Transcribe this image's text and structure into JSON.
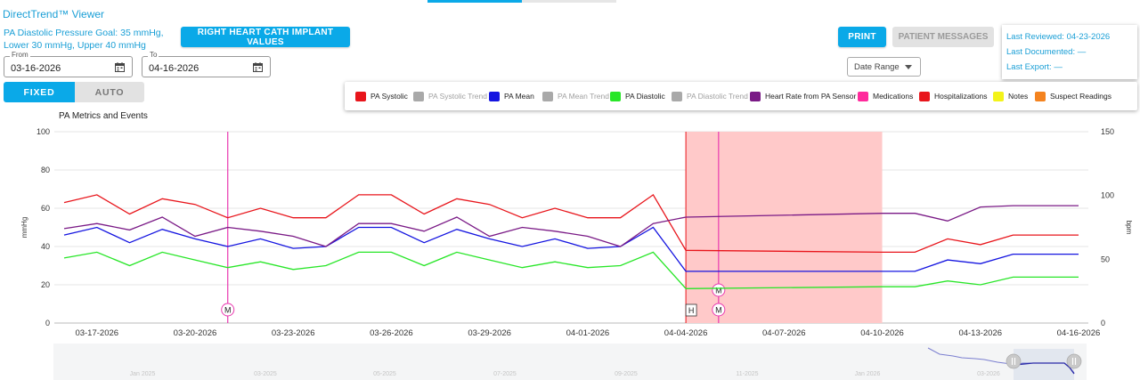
{
  "app": {
    "title": "DirectTrend™ Viewer"
  },
  "goal": {
    "line1": "PA Diastolic Pressure Goal: 35 mmHg,",
    "line2": "Lower 30 mmHg, Upper 40 mmHg"
  },
  "buttons": {
    "implant_values": "RIGHT HEART CATH IMPLANT VALUES",
    "print": "PRINT",
    "patient_messages": "PATIENT MESSAGES"
  },
  "from_field": {
    "label": "From",
    "value": "03-16-2026",
    "icon": "calendar-icon"
  },
  "to_field": {
    "label": "To",
    "value": "04-16-2026",
    "icon": "calendar-icon"
  },
  "scale_toggle": {
    "fixed": "FIXED",
    "auto": "AUTO",
    "selected": "FIXED"
  },
  "date_range": {
    "label": "Date Range",
    "icon": "chevron-down-icon"
  },
  "review": {
    "last_reviewed": "Last Reviewed: 04-23-2026",
    "last_documented": "Last Documented: —",
    "last_export": "Last Export: —"
  },
  "legend": [
    {
      "label": "PA Systolic",
      "color": "#e8151b",
      "active": true
    },
    {
      "label": "PA Systolic Trend",
      "color": "#a9a9a9",
      "active": false
    },
    {
      "label": "PA Mean",
      "color": "#1414e0",
      "active": true
    },
    {
      "label": "PA Mean Trend",
      "color": "#a9a9a9",
      "active": false
    },
    {
      "label": "PA Diastolic",
      "color": "#28e628",
      "active": true
    },
    {
      "label": "PA Diastolic Trend",
      "color": "#a9a9a9",
      "active": false
    },
    {
      "label": "Heart Rate from PA Sensor",
      "color": "#7a1a86",
      "active": true
    },
    {
      "label": "Medications",
      "color": "#ff2a9c",
      "active": true
    },
    {
      "label": "Hospitalizations",
      "color": "#e8151b",
      "active": true
    },
    {
      "label": "Notes",
      "color": "#f3f31a",
      "active": true
    },
    {
      "label": "Suspect Readings",
      "color": "#f4831f",
      "active": true
    }
  ],
  "chart_title": "PA Metrics and Events",
  "chart_data": {
    "type": "line",
    "ylabel": "mmHg",
    "y2label": "bpm",
    "ylim": [
      0,
      100
    ],
    "y2lim": [
      0,
      150
    ],
    "yticks": [
      0,
      20,
      40,
      60,
      80,
      100
    ],
    "y2ticks": [
      0,
      50,
      100,
      150
    ],
    "grid": true,
    "xlim": [
      "03-16-2026",
      "04-16-2026"
    ],
    "xticks": [
      "03-17-2026",
      "03-20-2026",
      "03-23-2026",
      "03-26-2026",
      "03-29-2026",
      "04-01-2026",
      "04-04-2026",
      "04-07-2026",
      "04-10-2026",
      "04-13-2026",
      "04-16-2026"
    ],
    "x": [
      "03-16-2026",
      "03-17-2026",
      "03-18-2026",
      "03-19-2026",
      "03-20-2026",
      "03-21-2026",
      "03-22-2026",
      "03-23-2026",
      "03-24-2026",
      "03-25-2026",
      "03-26-2026",
      "03-27-2026",
      "03-28-2026",
      "03-29-2026",
      "03-30-2026",
      "03-31-2026",
      "04-01-2026",
      "04-02-2026",
      "04-03-2026",
      "04-04-2026",
      "04-10-2026",
      "04-11-2026",
      "04-12-2026",
      "04-13-2026",
      "04-14-2026",
      "04-15-2026",
      "04-16-2026"
    ],
    "series": [
      {
        "name": "PA Systolic",
        "axis": "left",
        "color": "#e8151b",
        "values": [
          63,
          67,
          57,
          65,
          62,
          55,
          60,
          55,
          55,
          67,
          67,
          57,
          65,
          62,
          55,
          60,
          55,
          55,
          67,
          38,
          37,
          37,
          44,
          41,
          46,
          46,
          46
        ]
      },
      {
        "name": "PA Mean",
        "axis": "left",
        "color": "#1414e0",
        "values": [
          46,
          50,
          42,
          49,
          44,
          40,
          44,
          39,
          40,
          50,
          50,
          42,
          49,
          44,
          40,
          44,
          39,
          40,
          50,
          27,
          27,
          27,
          33,
          31,
          36,
          36,
          36
        ]
      },
      {
        "name": "PA Diastolic",
        "axis": "left",
        "color": "#28e628",
        "values": [
          34,
          37,
          30,
          37,
          33,
          29,
          32,
          28,
          30,
          37,
          37,
          30,
          37,
          33,
          29,
          32,
          29,
          30,
          37,
          18,
          19,
          19,
          22,
          20,
          24,
          24,
          24
        ]
      },
      {
        "name": "Heart Rate from PA Sensor",
        "axis": "right",
        "color": "#7a1a86",
        "values": [
          74,
          78,
          73,
          83,
          68,
          75,
          72,
          68,
          60,
          78,
          78,
          72,
          83,
          68,
          75,
          72,
          68,
          60,
          78,
          83,
          86,
          86,
          80,
          91,
          92,
          92,
          92
        ]
      }
    ],
    "events": [
      {
        "type": "medication",
        "date": "03-21-2026",
        "marker": "M"
      },
      {
        "type": "hospitalization",
        "start": "04-04-2026",
        "end": "04-10-2026",
        "marker": "H"
      },
      {
        "type": "medication",
        "date": "04-05-2026",
        "marker": "M"
      },
      {
        "type": "medication",
        "date": "04-05-2026",
        "marker": "M"
      }
    ]
  },
  "navigator": {
    "labels": [
      "Jan 2025",
      "03-2025",
      "05-2025",
      "07-2025",
      "09-2025",
      "11-2025",
      "Jan 2026",
      "03-2026"
    ]
  }
}
